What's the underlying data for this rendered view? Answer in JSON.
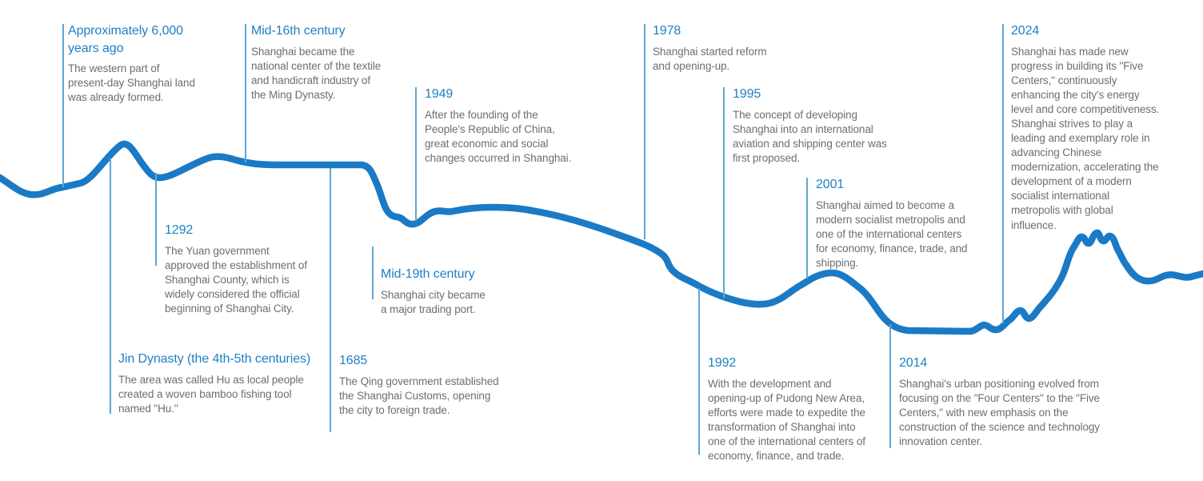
{
  "page": {
    "title": "Shanghai history timeline",
    "background": "#ffffff"
  },
  "timeline": {
    "river_color": "#1b7ac5",
    "connector_color": "#5ea7d4",
    "title_color": "#1e80c5",
    "body_color": "#6d6e71",
    "events": [
      {
        "id": "approx-6000-years-ago",
        "title": "Approximately 6,000\nyears ago",
        "description": "The western part of\npresent-day Shanghai land\nwas already formed."
      },
      {
        "id": "mid-16th-century",
        "title": "Mid-16th century",
        "description": "Shanghai became the\nnational center of the textile\nand handicraft industry of\nthe Ming Dynasty."
      },
      {
        "id": "1949",
        "title": "1949",
        "description": "After the founding of the\nPeople's Republic of China,\ngreat economic and social\nchanges occurred in Shanghai."
      },
      {
        "id": "1978",
        "title": "1978",
        "description": "Shanghai started reform\nand opening-up."
      },
      {
        "id": "1995",
        "title": "1995",
        "description": "The concept of developing\nShanghai into an international\naviation and shipping center was\nfirst proposed."
      },
      {
        "id": "2001",
        "title": "2001",
        "description": "Shanghai aimed to become a\nmodern socialist metropolis and\none of the international centers\nfor economy, finance, trade, and\nshipping."
      },
      {
        "id": "2024",
        "title": "2024",
        "description": "Shanghai has made new\nprogress in building its \"Five\nCenters,\" continuously\nenhancing the city's energy\nlevel and core competitiveness.\nShanghai strives to play a\nleading and exemplary role in\nadvancing Chinese\nmodernization, accelerating the\ndevelopment of a modern\nsocialist international\nmetropolis with global\ninfluence."
      },
      {
        "id": "1292",
        "title": "1292",
        "description": "The Yuan government\napproved the establishment of\nShanghai County, which is\nwidely considered the official\nbeginning of Shanghai City."
      },
      {
        "id": "mid-19th-century",
        "title": "Mid-19th century",
        "description": "Shanghai city became\na major trading port."
      },
      {
        "id": "jin-dynasty",
        "title": "Jin Dynasty (the 4th-5th centuries)",
        "description": "The area was called Hu as local people\ncreated a woven bamboo fishing tool\nnamed \"Hu.\""
      },
      {
        "id": "1685",
        "title": "1685",
        "description": "The Qing government established\nthe Shanghai Customs, opening\nthe city to foreign trade."
      },
      {
        "id": "1992",
        "title": "1992",
        "description": "With the development and\nopening-up of Pudong New Area,\nefforts were made to expedite the\ntransformation of Shanghai into\none of the international centers of\neconomy, finance, and trade."
      },
      {
        "id": "2014",
        "title": "2014",
        "description": "Shanghai's urban positioning evolved from\nfocusing on the \"Four Centers\" to the \"Five\nCenters,\" with new emphasis on the\nconstruction of the science and technology\ninnovation center."
      }
    ]
  }
}
